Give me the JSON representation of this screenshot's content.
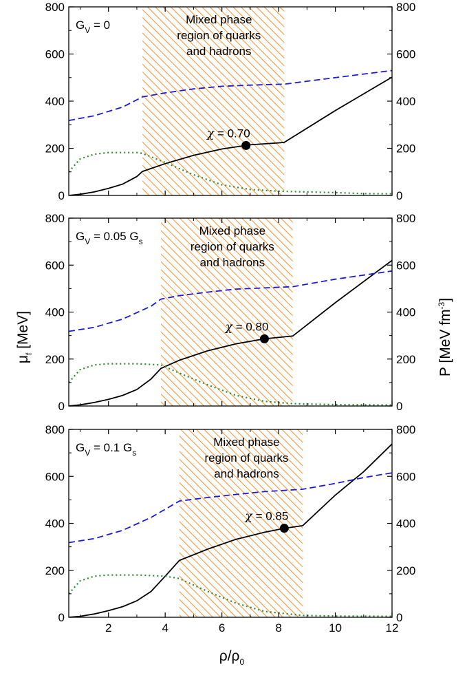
{
  "figure": {
    "xlabel": "ρ/ρ",
    "xlabel_sub": "0",
    "ylabel_left": "μ",
    "ylabel_left_sub": "f",
    "ylabel_left_units": " [MeV]",
    "ylabel_right": "P [MeV fm",
    "ylabel_right_sup": "-3",
    "ylabel_right_end": "]"
  },
  "chart_data": [
    {
      "type": "line",
      "label": "G",
      "label_sub": "V",
      "label_value": " = 0",
      "label_tail": "",
      "label_tail_sub": "",
      "region_text": [
        "Mixed phase",
        "region of quarks",
        "and hadrons"
      ],
      "region": [
        3.2,
        8.2
      ],
      "point": {
        "x": 6.85,
        "y": 212
      },
      "point_label_symbol": "χ",
      "point_label_value": " = 0.70",
      "xlim": [
        0.6,
        12
      ],
      "ylim": [
        0,
        800
      ],
      "xticks": [
        2,
        4,
        6,
        8,
        10,
        12
      ],
      "yticks": [
        0,
        200,
        400,
        600,
        800
      ],
      "series": [
        {
          "style": "solid",
          "color": "#000000",
          "x": [
            0.6,
            1,
            1.5,
            2,
            2.5,
            3,
            3.2,
            4,
            5,
            6,
            7,
            8,
            8.2,
            10,
            12
          ],
          "y": [
            0,
            5,
            15,
            30,
            48,
            80,
            102,
            135,
            170,
            197,
            215,
            223,
            225,
            360,
            502
          ]
        },
        {
          "style": "dashed",
          "color": "#1a1adb",
          "x": [
            0.6,
            1.5,
            2.5,
            3.2,
            4,
            5,
            6,
            7,
            8.2,
            10,
            12
          ],
          "y": [
            318,
            338,
            375,
            418,
            435,
            452,
            463,
            468,
            472,
            500,
            530
          ]
        },
        {
          "style": "dotted",
          "color": "#2a8a2a",
          "x": [
            0.6,
            1,
            1.5,
            2,
            3,
            3.2,
            4,
            5,
            6,
            7,
            8,
            9,
            10,
            11,
            12
          ],
          "y": [
            100,
            155,
            175,
            182,
            182,
            178,
            140,
            88,
            45,
            25,
            18,
            15,
            12,
            8,
            7
          ]
        }
      ]
    },
    {
      "type": "line",
      "label": "G",
      "label_sub": "V",
      "label_value": " = 0.05 G",
      "label_tail": "",
      "label_tail_sub": "s",
      "region_text": [
        "Mixed phase",
        "region of quarks",
        "and hadrons"
      ],
      "region": [
        3.85,
        8.5
      ],
      "point": {
        "x": 7.5,
        "y": 286
      },
      "point_label_symbol": "χ",
      "point_label_value": " = 0.80",
      "xlim": [
        0.6,
        12
      ],
      "ylim": [
        0,
        800
      ],
      "xticks": [
        2,
        4,
        6,
        8,
        10,
        12
      ],
      "yticks": [
        0,
        200,
        400,
        600,
        800
      ],
      "series": [
        {
          "style": "solid",
          "color": "#000000",
          "x": [
            0.6,
            1,
            1.5,
            2,
            2.5,
            3,
            3.5,
            3.85,
            4.5,
            5.5,
            6.5,
            7.5,
            8.5,
            10,
            12
          ],
          "y": [
            0,
            5,
            15,
            28,
            45,
            70,
            115,
            160,
            195,
            235,
            265,
            286,
            298,
            440,
            620
          ]
        },
        {
          "style": "dashed",
          "color": "#1a1adb",
          "x": [
            0.6,
            1.5,
            2.5,
            3.5,
            3.85,
            4.5,
            5.5,
            6.5,
            7.5,
            8.5,
            10,
            12
          ],
          "y": [
            318,
            335,
            370,
            425,
            455,
            470,
            485,
            498,
            503,
            508,
            540,
            575
          ]
        },
        {
          "style": "dotted",
          "color": "#2a8a2a",
          "x": [
            0.6,
            1,
            1.5,
            2,
            3,
            3.85,
            4.5,
            5.5,
            6.5,
            7.5,
            8.5,
            10,
            12
          ],
          "y": [
            100,
            155,
            175,
            180,
            180,
            175,
            140,
            90,
            45,
            20,
            10,
            6,
            4
          ]
        }
      ]
    },
    {
      "type": "line",
      "label": "G",
      "label_sub": "V",
      "label_value": " = 0.1 G",
      "label_tail": "",
      "label_tail_sub": "s",
      "region_text": [
        "Mixed phase",
        "region of quarks",
        "and hadrons"
      ],
      "region": [
        4.5,
        8.85
      ],
      "point": {
        "x": 8.2,
        "y": 379
      },
      "point_label_symbol": "χ",
      "point_label_value": " = 0.85",
      "xlim": [
        0.6,
        12
      ],
      "ylim": [
        0,
        800
      ],
      "xticks": [
        2,
        4,
        6,
        8,
        10,
        12
      ],
      "yticks": [
        0,
        200,
        400,
        600,
        800
      ],
      "series": [
        {
          "style": "solid",
          "color": "#000000",
          "x": [
            0.6,
            1,
            1.5,
            2,
            2.5,
            3,
            3.5,
            4,
            4.5,
            5.5,
            6.5,
            7.5,
            8.2,
            8.85,
            10,
            11,
            12
          ],
          "y": [
            0,
            4,
            14,
            28,
            45,
            70,
            110,
            175,
            242,
            290,
            332,
            362,
            379,
            390,
            520,
            620,
            738
          ]
        },
        {
          "style": "dashed",
          "color": "#1a1adb",
          "x": [
            0.6,
            1.5,
            2.5,
            3.5,
            4.5,
            5.5,
            6.5,
            7.5,
            8.85,
            10,
            11,
            12
          ],
          "y": [
            318,
            335,
            370,
            425,
            495,
            510,
            523,
            535,
            545,
            570,
            595,
            615
          ]
        },
        {
          "style": "dotted",
          "color": "#2a8a2a",
          "x": [
            0.6,
            1,
            1.5,
            2,
            3,
            4,
            4.5,
            5.5,
            6.5,
            7.5,
            8.85,
            10,
            12
          ],
          "y": [
            100,
            155,
            175,
            180,
            180,
            175,
            165,
            110,
            60,
            25,
            8,
            5,
            4
          ]
        }
      ]
    }
  ]
}
